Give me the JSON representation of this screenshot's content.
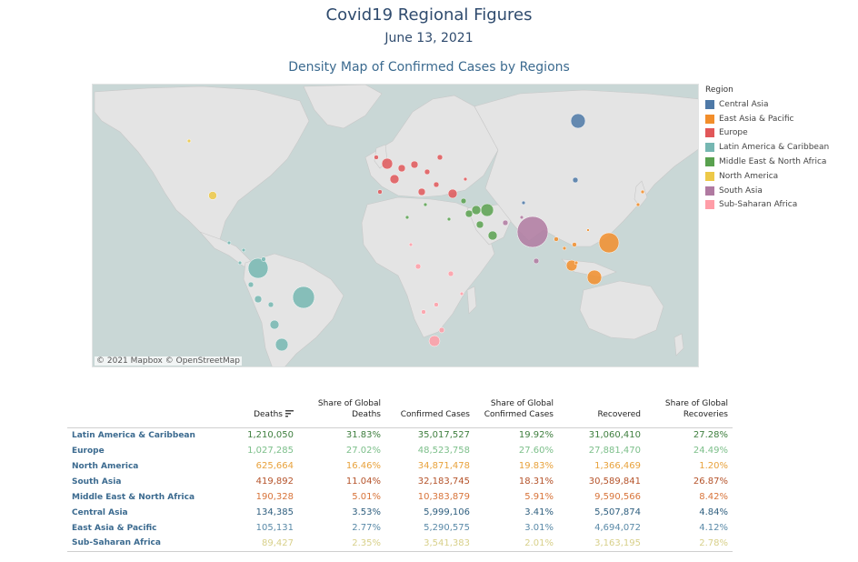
{
  "header": {
    "title": "Covid19 Regional Figures",
    "date": "June 13, 2021"
  },
  "map": {
    "title": "Density Map of Confirmed Cases by Regions",
    "attribution": "© 2021 Mapbox  © OpenStreetMap",
    "ocean_color": "#c9d7d6",
    "land_color": "#e4e4e4"
  },
  "legend": {
    "title": "Region",
    "items": [
      {
        "label": "Central Asia",
        "color": "#4e79a7"
      },
      {
        "label": "East Asia & Pacific",
        "color": "#f28e2b"
      },
      {
        "label": "Europe",
        "color": "#e15759"
      },
      {
        "label": "Latin America & Caribbean",
        "color": "#76b7b2"
      },
      {
        "label": "Middle East & North Africa",
        "color": "#59a14f"
      },
      {
        "label": "North America",
        "color": "#edc948"
      },
      {
        "label": "South Asia",
        "color": "#b07aa1"
      },
      {
        "label": "Sub-Saharan Africa",
        "color": "#ff9da7"
      }
    ]
  },
  "table": {
    "columns": [
      "Deaths",
      "Share of Global Deaths",
      "Confirmed Cases",
      "Share of Global Confirmed Cases",
      "Recovered",
      "Share of Global Recoveries"
    ],
    "sort_icon": "sort-descending-icon",
    "rows": [
      {
        "region": "Latin America & Caribbean",
        "values": [
          "1,210,050",
          "31.83%",
          "35,017,527",
          "19.92%",
          "31,060,410",
          "27.28%"
        ],
        "color": "#3f7f3f"
      },
      {
        "region": "Europe",
        "values": [
          "1,027,285",
          "27.02%",
          "48,523,758",
          "27.60%",
          "27,881,470",
          "24.49%"
        ],
        "color": "#7cbf8a"
      },
      {
        "region": "North America",
        "values": [
          "625,664",
          "16.46%",
          "34,871,478",
          "19.83%",
          "1,366,469",
          "1.20%"
        ],
        "color": "#e8a23c"
      },
      {
        "region": "South Asia",
        "values": [
          "419,892",
          "11.04%",
          "32,183,745",
          "18.31%",
          "30,589,841",
          "26.87%"
        ],
        "color": "#b5532a"
      },
      {
        "region": "Middle East & North Africa",
        "values": [
          "190,328",
          "5.01%",
          "10,383,879",
          "5.91%",
          "9,590,566",
          "8.42%"
        ],
        "color": "#d8743a"
      },
      {
        "region": "Central Asia",
        "values": [
          "134,385",
          "3.53%",
          "5,999,106",
          "3.41%",
          "5,507,874",
          "4.84%"
        ],
        "color": "#2f5f7f"
      },
      {
        "region": "East Asia & Pacific",
        "values": [
          "105,131",
          "2.77%",
          "5,290,575",
          "3.01%",
          "4,694,072",
          "4.12%"
        ],
        "color": "#5a8aa8"
      },
      {
        "region": "Sub-Saharan Africa",
        "values": [
          "89,427",
          "2.35%",
          "3,541,383",
          "2.01%",
          "3,163,195",
          "2.78%"
        ],
        "color": "#d8d08a"
      }
    ]
  }
}
